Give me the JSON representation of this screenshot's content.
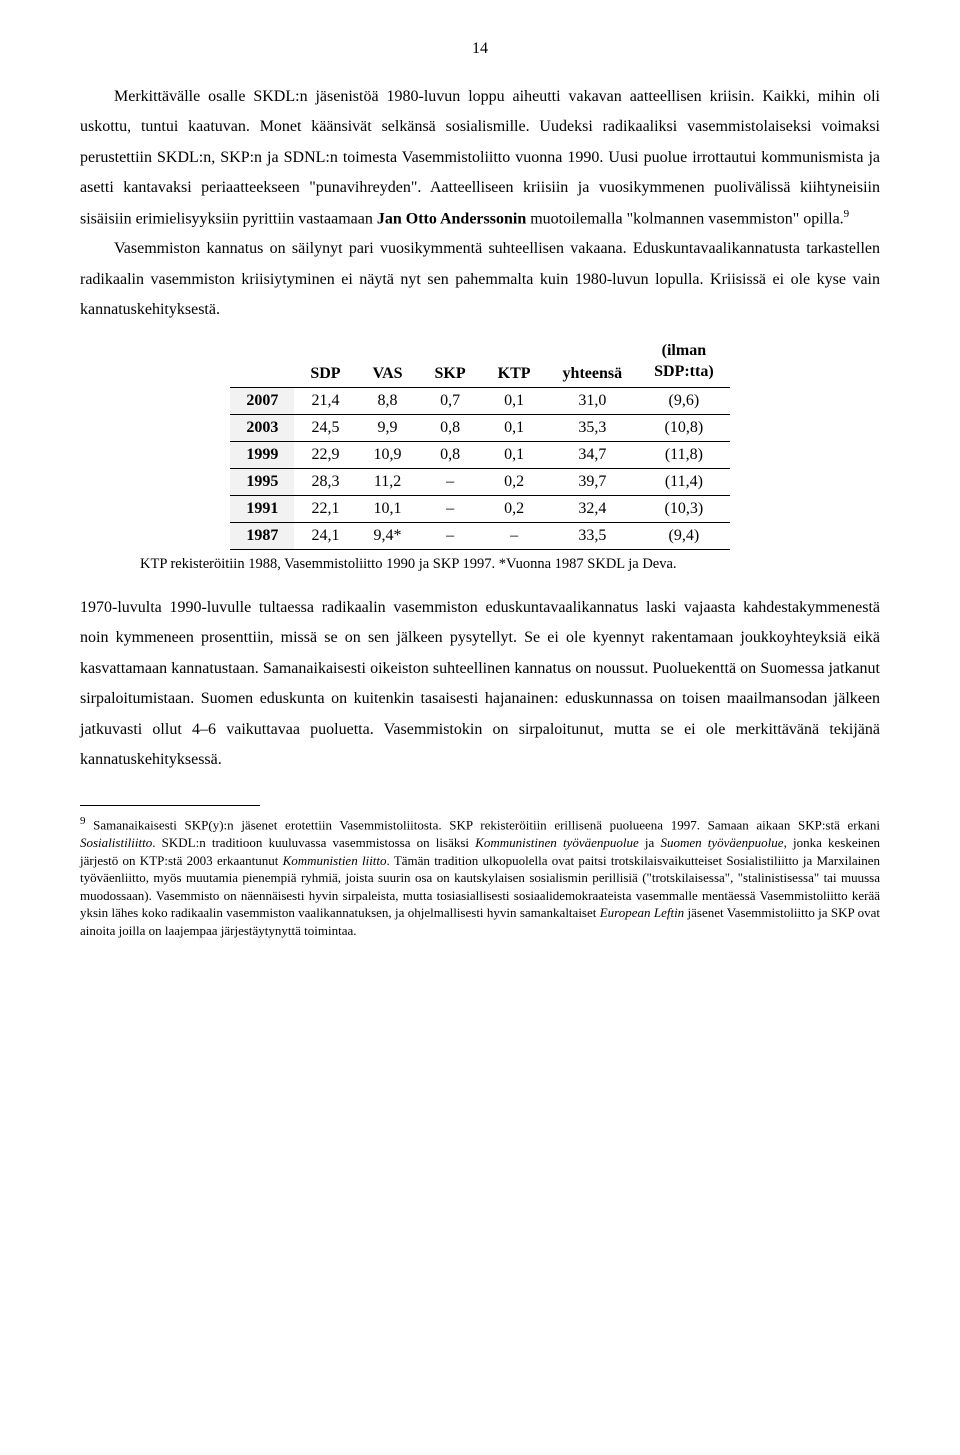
{
  "page_number": "14",
  "para1_a": "Merkittävälle osalle SKDL:n jäsenistöä 1980-luvun loppu aiheutti vakavan aatteellisen kriisin. Kaikki, mihin oli uskottu, tuntui kaatuvan. Monet käänsivät selkänsä sosialismille. Uudeksi radikaaliksi vasemmistolaiseksi voimaksi perustettiin SKDL:n, SKP:n ja SDNL:n toimesta Vasemmistoliitto vuonna 1990. Uusi puolue irrottautui kommunismista ja asetti kantavaksi periaatteekseen \"punavihreyden\". Aatteelliseen kriisiin ja vuosikymmenen puolivälissä kiihtyneisiin sisäisiin erimielisyyksiin pyrittiin vastaamaan ",
  "para1_b": "Jan Otto Anderssonin",
  "para1_c": " muotoilemalla \"kolmannen vasemmiston\" opilla.",
  "para1_sup": "9",
  "para2": "Vasemmiston kannatus on säilynyt pari vuosikymmentä suhteellisen vakaana. Eduskuntavaalikannatusta tarkastellen radikaalin vasemmiston kriisiytyminen ei näytä nyt sen pahemmalta kuin 1980-luvun lopulla. Kriisissä ei ole kyse vain kannatuskehityksestä.",
  "table": {
    "headers": [
      "",
      "SDP",
      "VAS",
      "SKP",
      "KTP",
      "yhteensä",
      "(ilman SDP:tta)"
    ],
    "header_last_line1": "(ilman",
    "header_last_line2": "SDP:tta)",
    "rows": [
      [
        "2007",
        "21,4",
        "8,8",
        "0,7",
        "0,1",
        "31,0",
        "(9,6)"
      ],
      [
        "2003",
        "24,5",
        "9,9",
        "0,8",
        "0,1",
        "35,3",
        "(10,8)"
      ],
      [
        "1999",
        "22,9",
        "10,9",
        "0,8",
        "0,1",
        "34,7",
        "(11,8)"
      ],
      [
        "1995",
        "28,3",
        "11,2",
        "–",
        "0,2",
        "39,7",
        "(11,4)"
      ],
      [
        "1991",
        "22,1",
        "10,1",
        "–",
        "0,2",
        "32,4",
        "(10,3)"
      ],
      [
        "1987",
        "24,1",
        "9,4*",
        "–",
        "–",
        "33,5",
        "(9,4)"
      ]
    ],
    "caption": "KTP rekisteröitiin 1988, Vasemmistoliitto 1990 ja SKP 1997. *Vuonna 1987 SKDL ja Deva."
  },
  "para3": "1970-luvulta 1990-luvulle tultaessa radikaalin vasemmiston eduskuntavaalikannatus laski vajaasta kahdestakymmenestä noin kymmeneen prosenttiin, missä se on sen jälkeen pysytellyt. Se ei ole kyennyt rakentamaan joukkoyhteyksiä eikä kasvattamaan kannatustaan. Samanaikaisesti oikeiston suhteellinen kannatus on noussut. Puoluekenttä on Suomessa jatkanut sirpaloitumistaan. Suomen eduskunta on kuitenkin tasaisesti hajanainen: eduskunnassa on toisen maailmansodan jälkeen jatkuvasti ollut 4–6 vaikuttavaa puoluetta. Vasemmistokin on sirpaloitunut, mutta se ei ole merkittävänä tekijänä kannatuskehityksessä.",
  "footnote": {
    "sup": "9",
    "a": " Samanaikaisesti SKP(y):n jäsenet erotettiin Vasemmistoliitosta. SKP rekisteröitiin erillisenä puolueena 1997. Samaan aikaan SKP:stä erkani ",
    "i1": "Sosialistiliitto",
    "b": ". SKDL:n traditioon kuuluvassa vasemmistossa on lisäksi ",
    "i2": "Kommunistinen työväenpuolue",
    "c": " ja ",
    "i3": "Suomen työväenpuolue",
    "d": ", jonka keskeinen järjestö on KTP:stä 2003 erkaantunut ",
    "i4": "Kommunistien liitto",
    "e": ". Tämän tradition ulkopuolella ovat paitsi trotskilaisvaikutteiset Sosialistiliitto ja Marxilainen työväenliitto, myös muutamia pienempiä ryhmiä, joista suurin osa on kautskylaisen sosialismin perillisiä (\"trotskilaisessa\", \"stalinistisessa\" tai muussa muodossaan). Vasemmisto on näennäisesti hyvin sirpaleista, mutta tosiasiallisesti sosiaalidemokraateista vasemmalle mentäessä Vasemmistoliitto kerää yksin lähes koko radikaalin vasemmiston vaalikannatuksen, ja ohjelmallisesti hyvin samankaltaiset ",
    "i5": "European Leftin",
    "f": " jäsenet Vasemmistoliitto ja SKP ovat ainoita joilla on laajempaa järjestäytynyttä toimintaa."
  }
}
